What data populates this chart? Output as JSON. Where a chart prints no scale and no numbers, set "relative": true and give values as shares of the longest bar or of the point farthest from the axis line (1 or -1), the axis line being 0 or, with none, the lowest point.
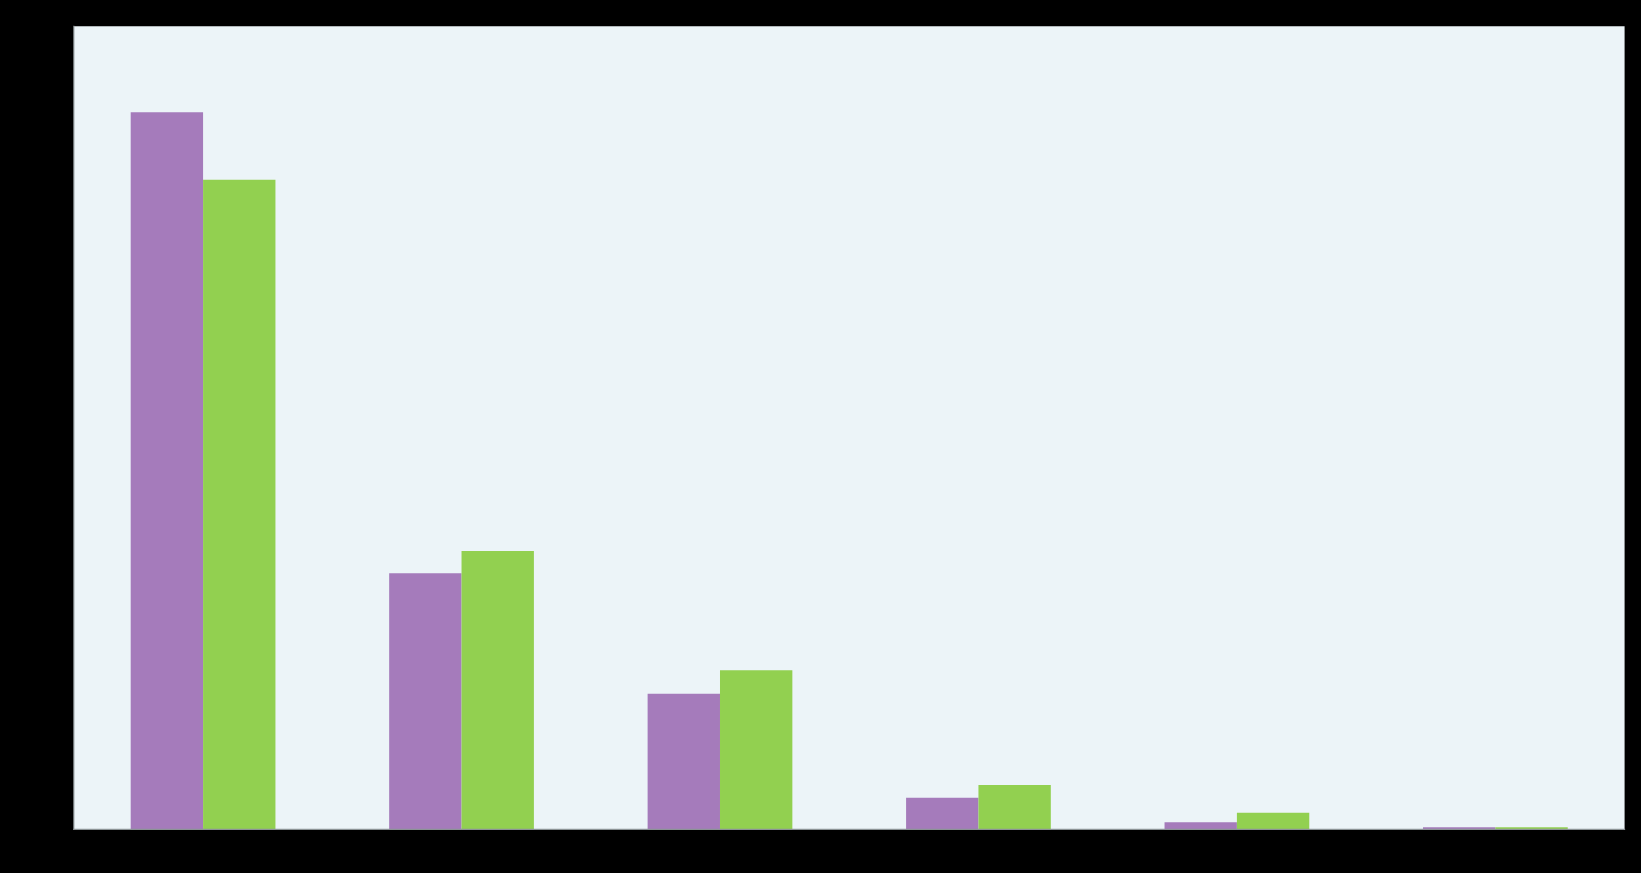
{
  "chart_data": {
    "type": "bar",
    "relative": true,
    "categories": [
      null,
      null,
      null,
      null,
      null,
      null
    ],
    "series": [
      {
        "color": "#a57bbb",
        "values": [
          1,
          0.357,
          0.189,
          0.044,
          0.01,
          0.003
        ]
      },
      {
        "color": "#92d050",
        "values": [
          0.906,
          0.388,
          0.222,
          0.062,
          0.023,
          0.003
        ]
      }
    ]
  }
}
